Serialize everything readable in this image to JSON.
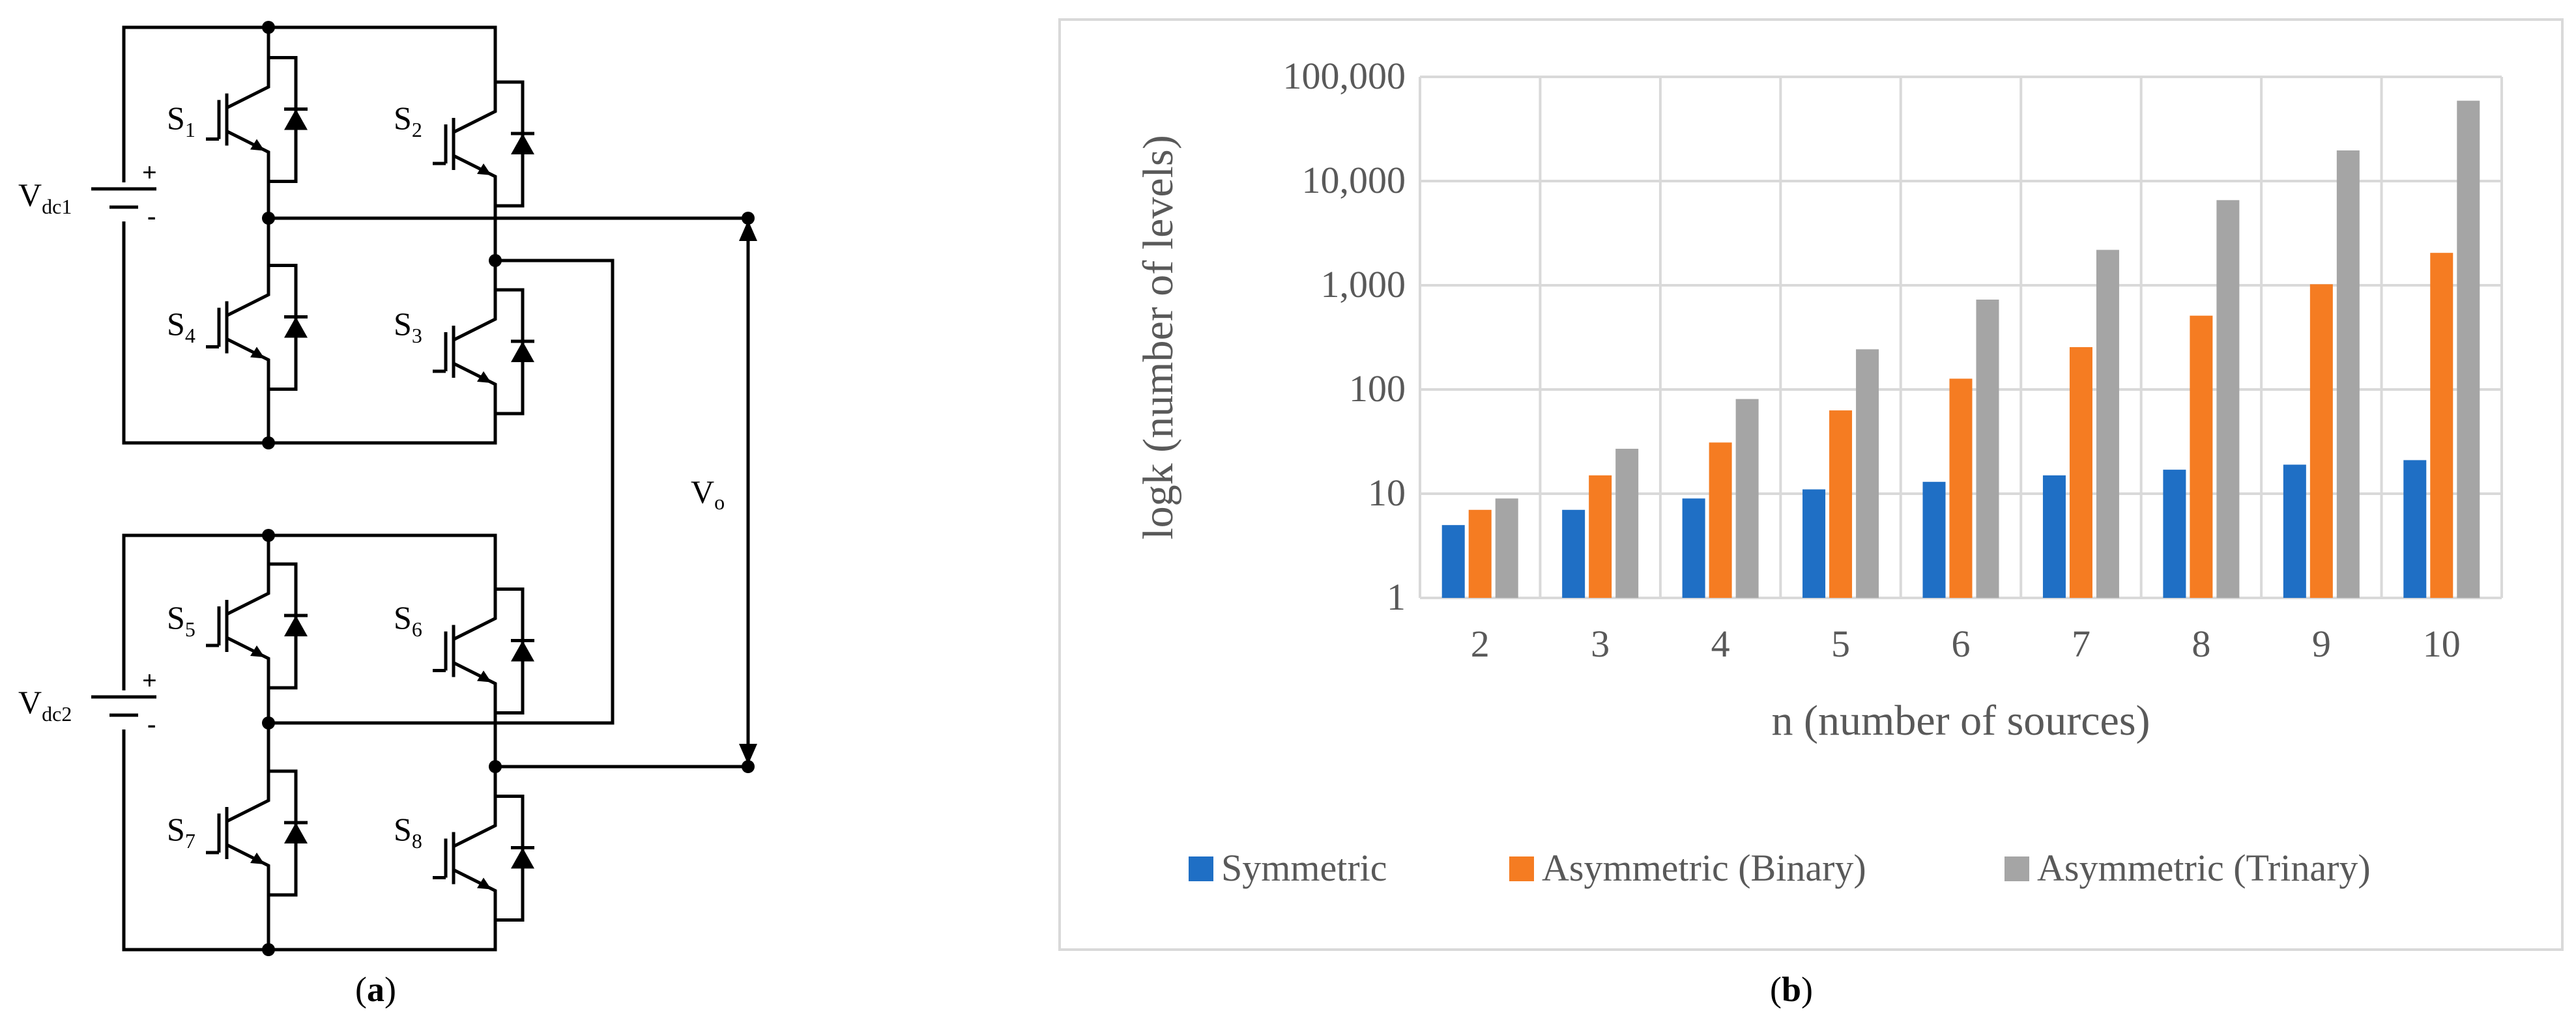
{
  "panel_a": {
    "caption": {
      "open": "(",
      "letter": "a",
      "close": ")"
    },
    "switches": [
      {
        "base": "S",
        "sub": "1"
      },
      {
        "base": "S",
        "sub": "2"
      },
      {
        "base": "S",
        "sub": "4"
      },
      {
        "base": "S",
        "sub": "3"
      },
      {
        "base": "S",
        "sub": "5"
      },
      {
        "base": "S",
        "sub": "6"
      },
      {
        "base": "S",
        "sub": "7"
      },
      {
        "base": "S",
        "sub": "8"
      }
    ],
    "sources": [
      {
        "base": "V",
        "sub": "dc1"
      },
      {
        "base": "V",
        "sub": "dc2"
      }
    ],
    "output": {
      "base": "V",
      "sub": "o"
    },
    "plus_sign": "+",
    "minus_sign": "-"
  },
  "panel_b": {
    "caption": {
      "open": "(",
      "letter": "b",
      "close": ")"
    }
  },
  "chart_data": {
    "type": "bar",
    "title": "",
    "xlabel": "n (number of sources)",
    "ylabel": "logk (number of levels)",
    "y_scale": "log",
    "ylim": [
      1,
      100000
    ],
    "y_ticks": [
      1,
      10,
      100,
      1000,
      10000,
      100000
    ],
    "y_tick_labels": [
      "1",
      "10",
      "100",
      "1,000",
      "10,000",
      "100,000"
    ],
    "grid": true,
    "legend_position": "bottom",
    "categories": [
      "2",
      "3",
      "4",
      "5",
      "6",
      "7",
      "8",
      "9",
      "10"
    ],
    "series": [
      {
        "name": "Symmetric",
        "color": "#1f6fc5",
        "values": [
          5,
          7,
          9,
          11,
          13,
          15,
          17,
          19,
          21
        ]
      },
      {
        "name": "Asymmetric (Binary)",
        "color": "#f57c22",
        "values": [
          7,
          15,
          31,
          63,
          127,
          255,
          511,
          1023,
          2047
        ]
      },
      {
        "name": "Asymmetric (Trinary)",
        "color": "#a5a5a5",
        "values": [
          9,
          27,
          81,
          243,
          729,
          2187,
          6561,
          19683,
          59049
        ]
      }
    ]
  }
}
